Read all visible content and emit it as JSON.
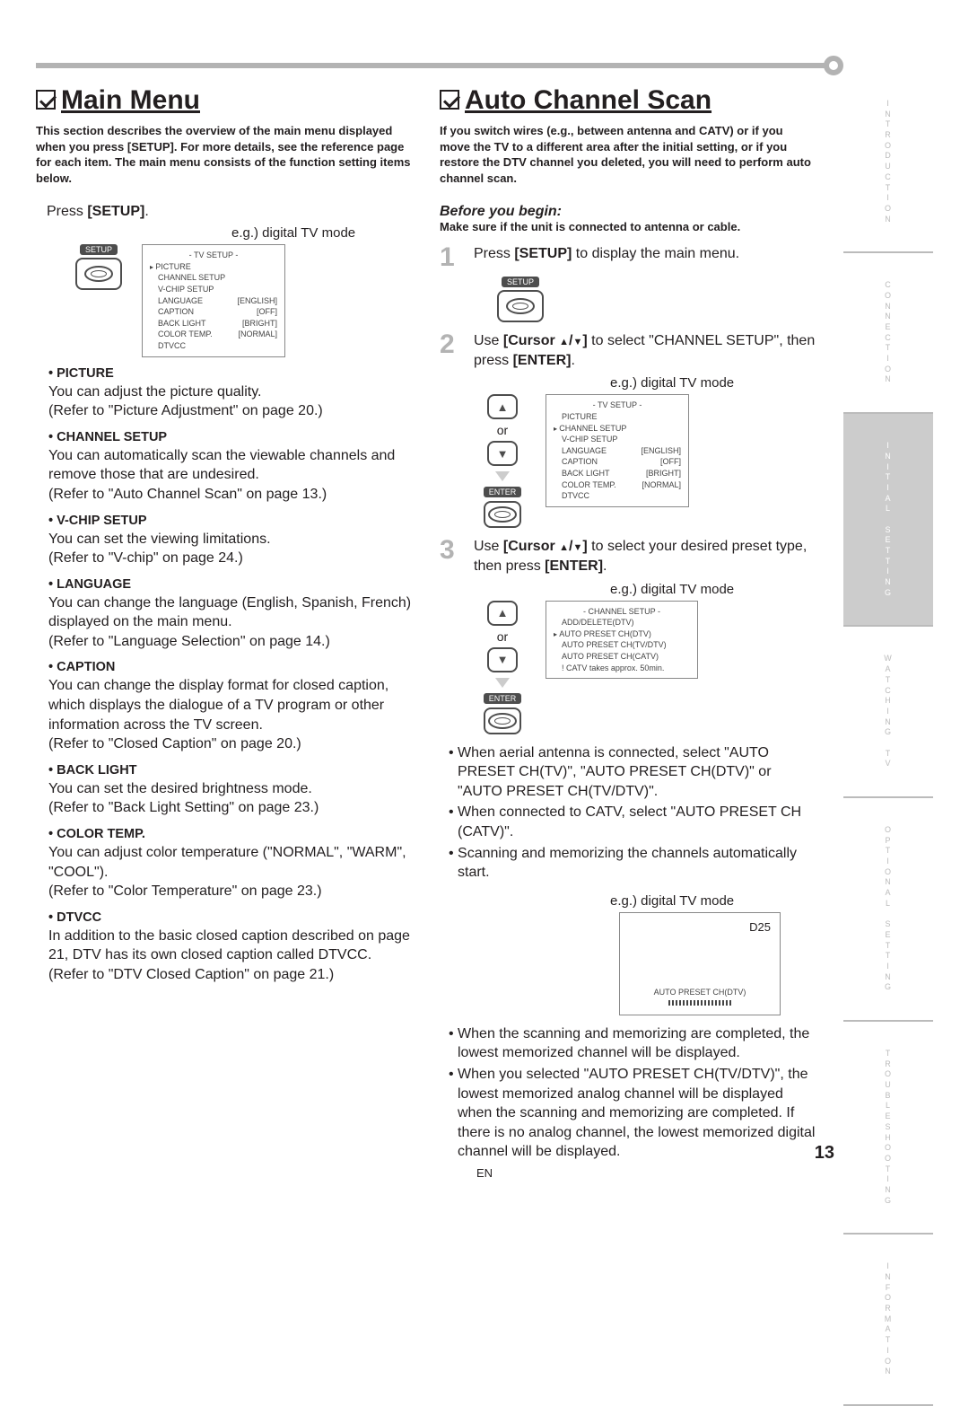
{
  "page": {
    "number": "13",
    "lang": "EN"
  },
  "sideTabs": [
    {
      "label": "INTRODUCTION",
      "active": false
    },
    {
      "label": "CONNECTION",
      "active": false
    },
    {
      "label": "INITIAL SETTING",
      "active": true
    },
    {
      "label": "WATCHING TV",
      "active": false
    },
    {
      "label": "OPTIONAL SETTING",
      "active": false
    },
    {
      "label": "TROUBLESHOOTING",
      "active": false
    },
    {
      "label": "INFORMATION",
      "active": false
    }
  ],
  "left": {
    "title": "Main Menu",
    "intro": "This section describes the overview of the main menu displayed when you press [SETUP]. For more details, see the reference page for each item. The main menu consists of the function setting items below.",
    "press": "Press ",
    "pressBold": "[SETUP]",
    "pressAfter": ".",
    "eg": "e.g.) digital TV mode",
    "setupLabel": "SETUP",
    "tvMenu": {
      "title": "-  TV SETUP  -",
      "rows": [
        {
          "l": "PICTURE",
          "r": "",
          "sel": true
        },
        {
          "l": "CHANNEL SETUP",
          "r": ""
        },
        {
          "l": "V-CHIP  SETUP",
          "r": ""
        },
        {
          "l": "LANGUAGE",
          "r": "[ENGLISH]"
        },
        {
          "l": "CAPTION",
          "r": "[OFF]"
        },
        {
          "l": "BACK  LIGHT",
          "r": "[BRIGHT]"
        },
        {
          "l": "COLOR  TEMP.",
          "r": "[NORMAL]"
        },
        {
          "l": "DTVCC",
          "r": ""
        }
      ]
    },
    "items": [
      {
        "head": "PICTURE",
        "body": "You can adjust the picture quality.\n(Refer to \"Picture Adjustment\" on page 20.)"
      },
      {
        "head": "CHANNEL SETUP",
        "body": "You can automatically scan the viewable channels and remove those that are undesired.\n(Refer to \"Auto Channel Scan\" on page 13.)"
      },
      {
        "head": "V-CHIP SETUP",
        "body": "You can set the viewing limitations.\n(Refer to \"V-chip\" on page 24.)"
      },
      {
        "head": "LANGUAGE",
        "body": "You can change the language (English, Spanish, French) displayed on the main menu.\n(Refer to \"Language Selection\" on page 14.)"
      },
      {
        "head": "CAPTION",
        "body": "You can change the display format for closed caption, which displays the dialogue of a TV program or other information across the TV screen.\n(Refer to \"Closed Caption\" on page 20.)"
      },
      {
        "head": "BACK LIGHT",
        "body": "You can set the desired brightness mode.\n(Refer to \"Back Light Setting\" on page 23.)"
      },
      {
        "head": "COLOR TEMP.",
        "body": "You can adjust color temperature (\"NORMAL\", \"WARM\", \"COOL\").\n(Refer to \"Color Temperature\" on page 23.)"
      },
      {
        "head": "DTVCC",
        "body": "In addition to the basic closed caption described on page 21, DTV has its own closed caption called DTVCC.\n(Refer to \"DTV Closed Caption\" on page 21.)"
      }
    ]
  },
  "right": {
    "title": "Auto Channel Scan",
    "intro": "If you switch wires (e.g., between antenna and CATV) or if you move the TV to a different area after the initial setting, or if you restore the DTV channel you deleted, you will need to perform auto channel scan.",
    "before": "Before you begin:",
    "beforeSub": "Make sure if the unit is connected to antenna or cable.",
    "steps": {
      "s1": {
        "num": "1",
        "pre": "Press ",
        "bold": "[SETUP]",
        "post": " to display the main menu."
      },
      "s2": {
        "num": "2",
        "pre": "Use ",
        "bold1": "[Cursor ",
        "mid": "]",
        "post1": " to select \"CHANNEL SETUP\", then press ",
        "bold2": "[ENTER]",
        "post2": ".",
        "eg": "e.g.) digital TV mode"
      },
      "s3": {
        "num": "3",
        "pre": "Use ",
        "bold1": "[Cursor ",
        "mid": "]",
        "post1": " to select your desired preset type, then press ",
        "bold2": "[ENTER]",
        "post2": ".",
        "eg": "e.g.) digital TV mode"
      }
    },
    "enterLabel": "ENTER",
    "orLabel": "or",
    "tvMenu2": {
      "title": "-  TV SETUP  -",
      "rows": [
        {
          "l": "PICTURE",
          "r": ""
        },
        {
          "l": "CHANNEL SETUP",
          "r": "",
          "sel": true
        },
        {
          "l": "V-CHIP  SETUP",
          "r": ""
        },
        {
          "l": "LANGUAGE",
          "r": "[ENGLISH]"
        },
        {
          "l": "CAPTION",
          "r": "[OFF]"
        },
        {
          "l": "BACK  LIGHT",
          "r": "[BRIGHT]"
        },
        {
          "l": "COLOR  TEMP.",
          "r": "[NORMAL]"
        },
        {
          "l": "DTVCC",
          "r": ""
        }
      ]
    },
    "tvMenu3": {
      "title": "- CHANNEL SETUP -",
      "rows": [
        {
          "l": "ADD/DELETE(DTV)",
          "r": ""
        },
        {
          "l": "AUTO PRESET CH(DTV)",
          "r": "",
          "sel": true
        },
        {
          "l": "AUTO PRESET CH(TV/DTV)",
          "r": ""
        },
        {
          "l": "AUTO PRESET CH(CATV)",
          "r": ""
        },
        {
          "l": "! CATV takes approx. 50min.",
          "r": ""
        }
      ]
    },
    "bullets1": [
      "When aerial antenna is connected, select \"AUTO PRESET CH(TV)\", \"AUTO PRESET CH(DTV)\" or \"AUTO PRESET CH(TV/DTV)\".",
      "When connected to CATV, select \"AUTO PRESET CH (CATV)\".",
      "Scanning and memorizing the channels automatically start."
    ],
    "eg4": "e.g.) digital TV mode",
    "scanBox": {
      "ch": "D25",
      "label": "AUTO PRESET CH(DTV)"
    },
    "bullets2": [
      "When the scanning and memorizing are completed, the lowest memorized channel will be displayed.",
      "When you selected \"AUTO PRESET CH(TV/DTV)\", the lowest memorized analog channel will be displayed when the scanning and memorizing are completed. If there is no analog channel, the lowest memorized digital channel will be displayed."
    ]
  }
}
